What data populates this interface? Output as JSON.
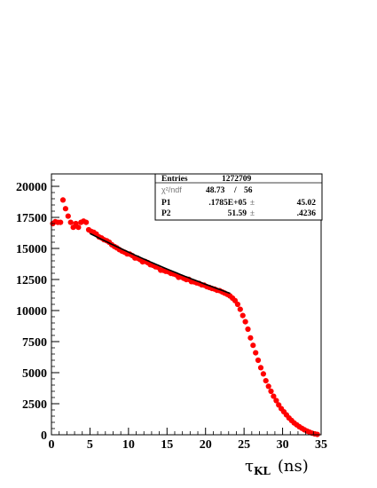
{
  "chart_data": {
    "type": "scatter",
    "title": "",
    "xlabel": {
      "symbol": "τ",
      "subscript": "KL",
      "unit": "(ns)"
    },
    "ylabel": "",
    "xlim": [
      0,
      35
    ],
    "ylim": [
      0,
      21000
    ],
    "x_ticks": [
      0,
      5,
      10,
      15,
      20,
      25,
      30,
      35
    ],
    "y_ticks": [
      0,
      2500,
      5000,
      7500,
      10000,
      12500,
      15000,
      17500,
      20000
    ],
    "y_tick_labels": [
      "0",
      "2500",
      "5000",
      "7500",
      "10000",
      "12500",
      "15000",
      "17500",
      "20000"
    ],
    "grid": false,
    "marker_color": "#ff0000",
    "fit_color": "#000000",
    "stats_box": {
      "entries_label": "Entries",
      "entries_value": "1272709",
      "chi2_label": "χ²/ndf",
      "chi2_value": "48.73",
      "chi2_sep": "/",
      "ndf_value": "56",
      "p1_label": "P1",
      "p1_value": ".1785E+05",
      "p1_pm": "±",
      "p1_err": "45.02",
      "p2_label": "P2",
      "p2_value": "51.59",
      "p2_pm": "±",
      "p2_err": ".4236"
    },
    "fit": {
      "range": [
        5.0,
        23.2
      ],
      "p1": 17850,
      "p2": 51.59
    },
    "series": [
      {
        "points": [
          [
            0.17,
            17000
          ],
          [
            0.5,
            17150
          ],
          [
            0.83,
            17100
          ],
          [
            1.17,
            17100
          ],
          [
            1.5,
            18900
          ],
          [
            1.83,
            18200
          ],
          [
            2.17,
            17600
          ],
          [
            2.5,
            17100
          ],
          [
            2.83,
            16700
          ],
          [
            3.17,
            17000
          ],
          [
            3.5,
            16700
          ],
          [
            3.83,
            17100
          ],
          [
            4.17,
            17200
          ],
          [
            4.5,
            17100
          ],
          [
            4.83,
            16500
          ],
          [
            5.17,
            16370
          ],
          [
            5.5,
            16290
          ],
          [
            5.83,
            16160
          ],
          [
            6.17,
            15930
          ],
          [
            6.5,
            15840
          ],
          [
            6.83,
            15700
          ],
          [
            7.17,
            15620
          ],
          [
            7.5,
            15500
          ],
          [
            7.83,
            15300
          ],
          [
            8.17,
            15160
          ],
          [
            8.5,
            15040
          ],
          [
            8.83,
            14900
          ],
          [
            9.17,
            14780
          ],
          [
            9.5,
            14690
          ],
          [
            9.83,
            14560
          ],
          [
            10.17,
            14540
          ],
          [
            10.5,
            14420
          ],
          [
            10.83,
            14230
          ],
          [
            11.17,
            14220
          ],
          [
            11.5,
            14100
          ],
          [
            11.83,
            13920
          ],
          [
            12.17,
            13950
          ],
          [
            12.5,
            13860
          ],
          [
            12.83,
            13690
          ],
          [
            13.17,
            13640
          ],
          [
            13.5,
            13520
          ],
          [
            13.83,
            13480
          ],
          [
            14.17,
            13250
          ],
          [
            14.5,
            13240
          ],
          [
            14.83,
            13160
          ],
          [
            15.17,
            13120
          ],
          [
            15.5,
            12990
          ],
          [
            15.83,
            12950
          ],
          [
            16.17,
            12880
          ],
          [
            16.5,
            12680
          ],
          [
            16.83,
            12700
          ],
          [
            17.17,
            12590
          ],
          [
            17.5,
            12490
          ],
          [
            17.83,
            12510
          ],
          [
            18.17,
            12330
          ],
          [
            18.5,
            12310
          ],
          [
            18.83,
            12230
          ],
          [
            19.17,
            12180
          ],
          [
            19.5,
            12070
          ],
          [
            19.83,
            12040
          ],
          [
            20.17,
            11920
          ],
          [
            20.5,
            11860
          ],
          [
            20.83,
            11780
          ],
          [
            21.17,
            11730
          ],
          [
            21.5,
            11630
          ],
          [
            21.83,
            11600
          ],
          [
            22.17,
            11490
          ],
          [
            22.5,
            11400
          ],
          [
            22.83,
            11300
          ],
          [
            23.17,
            11180
          ],
          [
            23.5,
            11000
          ],
          [
            23.83,
            10800
          ],
          [
            24.17,
            10500
          ],
          [
            24.5,
            10100
          ],
          [
            24.83,
            9600
          ],
          [
            25.17,
            9100
          ],
          [
            25.5,
            8500
          ],
          [
            25.83,
            7800
          ],
          [
            26.17,
            7200
          ],
          [
            26.5,
            6600
          ],
          [
            26.83,
            6000
          ],
          [
            27.17,
            5400
          ],
          [
            27.5,
            4900
          ],
          [
            27.83,
            4350
          ],
          [
            28.17,
            3900
          ],
          [
            28.5,
            3500
          ],
          [
            28.83,
            3100
          ],
          [
            29.17,
            2750
          ],
          [
            29.5,
            2400
          ],
          [
            29.83,
            2100
          ],
          [
            30.17,
            1850
          ],
          [
            30.5,
            1600
          ],
          [
            30.83,
            1350
          ],
          [
            31.17,
            1150
          ],
          [
            31.5,
            950
          ],
          [
            31.83,
            800
          ],
          [
            32.17,
            650
          ],
          [
            32.5,
            520
          ],
          [
            32.83,
            400
          ],
          [
            33.17,
            300
          ],
          [
            33.5,
            210
          ],
          [
            33.83,
            130
          ],
          [
            34.17,
            70
          ],
          [
            34.5,
            30
          ]
        ]
      }
    ]
  }
}
